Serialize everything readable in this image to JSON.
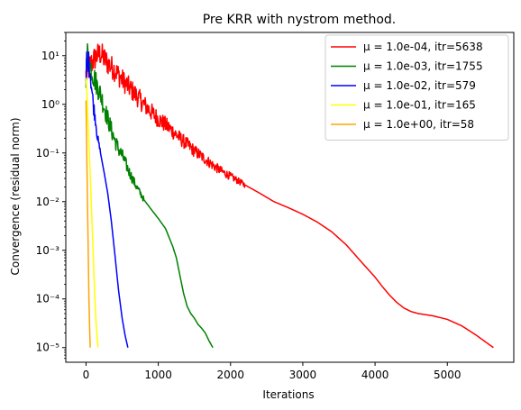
{
  "chart_data": {
    "type": "line",
    "title": "Pre KRR with nystrom method.",
    "xlabel": "Iterations",
    "ylabel": "Convergence (residual norm)",
    "x_scale": "linear",
    "y_scale": "log",
    "xlim": [
      -280,
      5920
    ],
    "ylim": [
      5e-06,
      30
    ],
    "x_ticks": [
      0,
      1000,
      2000,
      3000,
      4000,
      5000
    ],
    "x_tick_labels": [
      "0",
      "1000",
      "2000",
      "3000",
      "4000",
      "5000"
    ],
    "y_ticks": [
      1e-05,
      0.0001,
      0.001,
      0.01,
      0.1,
      1,
      10
    ],
    "y_tick_labels": [
      "10⁻⁵",
      "10⁻⁴",
      "10⁻³",
      "10⁻²",
      "10⁻¹",
      "10⁰",
      "10¹"
    ],
    "grid": false,
    "legend_position": "top-right",
    "series": [
      {
        "name": "μ = 1.0e-04, itr=5638",
        "color": "#ff0000",
        "noisy_until": 2200,
        "x": [
          0,
          50,
          100,
          150,
          200,
          300,
          400,
          500,
          600,
          700,
          800,
          900,
          1000,
          1100,
          1200,
          1300,
          1400,
          1500,
          1600,
          1700,
          1800,
          1900,
          2000,
          2200,
          2400,
          2600,
          2800,
          3000,
          3200,
          3400,
          3600,
          3800,
          4000,
          4100,
          4200,
          4300,
          4400,
          4500,
          4600,
          4800,
          5000,
          5200,
          5400,
          5638
        ],
        "y": [
          4,
          6,
          8,
          10,
          11,
          7,
          5,
          3.2,
          2.2,
          1.5,
          1.0,
          0.7,
          0.5,
          0.38,
          0.28,
          0.2,
          0.15,
          0.11,
          0.085,
          0.065,
          0.05,
          0.04,
          0.033,
          0.022,
          0.015,
          0.01,
          0.0075,
          0.0055,
          0.0038,
          0.0024,
          0.0013,
          0.0006,
          0.00028,
          0.00018,
          0.00012,
          8.5e-05,
          6.5e-05,
          5.5e-05,
          5e-05,
          4.5e-05,
          3.8e-05,
          2.8e-05,
          1.8e-05,
          1e-05
        ]
      },
      {
        "name": "μ = 1.0e-03, itr=1755",
        "color": "#008000",
        "noisy_until": 800,
        "x": [
          0,
          20,
          40,
          60,
          100,
          150,
          200,
          250,
          300,
          350,
          400,
          450,
          500,
          550,
          600,
          650,
          700,
          750,
          800,
          900,
          1000,
          1100,
          1200,
          1250,
          1300,
          1350,
          1400,
          1450,
          1500,
          1550,
          1600,
          1650,
          1700,
          1755
        ],
        "y": [
          4,
          11,
          8,
          6,
          4,
          2.5,
          1.6,
          0.9,
          0.5,
          0.3,
          0.18,
          0.12,
          0.09,
          0.06,
          0.04,
          0.028,
          0.02,
          0.015,
          0.011,
          0.007,
          0.0045,
          0.0028,
          0.0012,
          0.0007,
          0.0003,
          0.00013,
          7e-05,
          5e-05,
          4e-05,
          3e-05,
          2.5e-05,
          2e-05,
          1.4e-05,
          1e-05
        ]
      },
      {
        "name": "μ = 1.0e-02, itr=579",
        "color": "#0000ff",
        "noisy_until": 200,
        "x": [
          0,
          10,
          20,
          30,
          50,
          80,
          100,
          130,
          160,
          200,
          250,
          300,
          350,
          400,
          450,
          500,
          540,
          579
        ],
        "y": [
          3,
          8,
          5,
          8,
          6,
          2,
          1.0,
          0.5,
          0.2,
          0.1,
          0.04,
          0.015,
          0.004,
          0.0008,
          0.00015,
          4e-05,
          1.8e-05,
          1e-05
        ]
      },
      {
        "name": "μ = 1.0e-01, itr=165",
        "color": "#ffff00",
        "x": [
          0,
          10,
          20,
          40,
          60,
          80,
          100,
          120,
          140,
          165
        ],
        "y": [
          3.5,
          2,
          0.8,
          0.15,
          0.03,
          0.005,
          0.0008,
          0.00012,
          3e-05,
          1e-05
        ]
      },
      {
        "name": "μ = 1.0e+00, itr=58",
        "color": "#ffa500",
        "x": [
          0,
          10,
          20,
          30,
          40,
          50,
          58
        ],
        "y": [
          1.2,
          0.1,
          0.01,
          0.001,
          0.0001,
          2.5e-05,
          1e-05
        ]
      }
    ]
  }
}
